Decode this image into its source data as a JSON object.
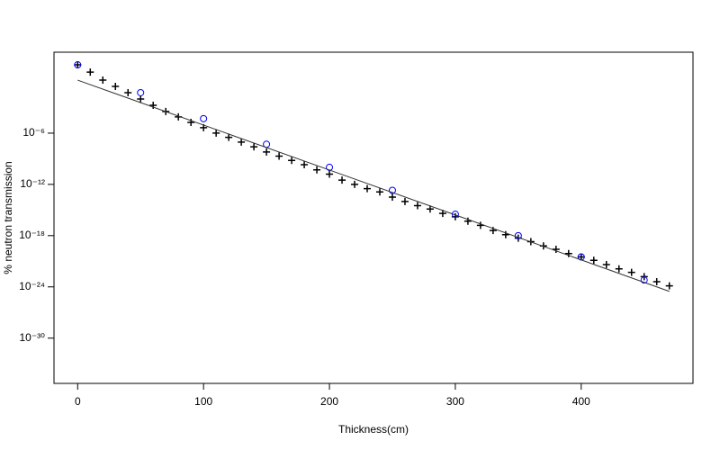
{
  "chart_data": {
    "type": "scatter",
    "xlabel": "Thickness(cm)",
    "ylabel": "% neutron transmission",
    "xlim": [
      -18.8,
      488.8
    ],
    "xticks": [
      0,
      100,
      200,
      300,
      400
    ],
    "ylim": [
      5e-36,
      3000.0
    ],
    "log_y": true,
    "yticks": [
      {
        "value": 1e-06,
        "label": "10⁻⁶"
      },
      {
        "value": 1e-12,
        "label": "10⁻¹²"
      },
      {
        "value": 1e-18,
        "label": "10⁻¹⁸"
      },
      {
        "value": 1e-24,
        "label": "10⁻²⁴"
      },
      {
        "value": 1e-30,
        "label": "10⁻³⁰"
      }
    ],
    "series": [
      {
        "marker": "plus",
        "color": "#000000",
        "x": [
          0,
          10,
          20,
          30,
          40,
          50,
          60,
          70,
          80,
          90,
          100,
          110,
          120,
          130,
          140,
          150,
          160,
          170,
          180,
          190,
          200,
          210,
          220,
          230,
          240,
          250,
          260,
          270,
          280,
          290,
          300,
          310,
          320,
          330,
          340,
          350,
          360,
          370,
          380,
          390,
          400,
          410,
          420,
          430,
          440,
          450,
          460,
          470
        ],
        "values": [
          100,
          14,
          1.6,
          0.3,
          0.055,
          0.01,
          0.0018,
          0.00034,
          8e-05,
          1.8e-05,
          4.3e-06,
          1e-06,
          3.2e-07,
          9e-08,
          2.5e-08,
          6.3e-09,
          2e-09,
          6.3e-10,
          2e-10,
          5e-11,
          1.6e-11,
          3.2e-12,
          1e-12,
          3.2e-13,
          1.3e-13,
          3.2e-14,
          1e-14,
          3.2e-15,
          1.3e-15,
          4e-16,
          1.6e-16,
          5e-17,
          1.6e-17,
          4e-18,
          1.3e-18,
          5e-19,
          2e-19,
          6.3e-20,
          2.5e-20,
          8e-21,
          3.2e-21,
          1.3e-21,
          4e-22,
          1.3e-22,
          5e-23,
          1.6e-23,
          4e-24,
          1.3e-24
        ]
      },
      {
        "marker": "circle",
        "color": "#0000ff",
        "x": [
          0,
          50,
          100,
          150,
          200,
          250,
          300,
          350,
          400,
          450
        ],
        "values": [
          100,
          0.055,
          5e-05,
          5e-08,
          1e-10,
          2e-13,
          3.2e-16,
          1e-18,
          3.2e-21,
          6.3e-24
        ]
      },
      {
        "marker": "line",
        "color": "#333333",
        "x": [
          0,
          470
        ],
        "values": [
          1.6,
          3e-25
        ]
      }
    ]
  }
}
